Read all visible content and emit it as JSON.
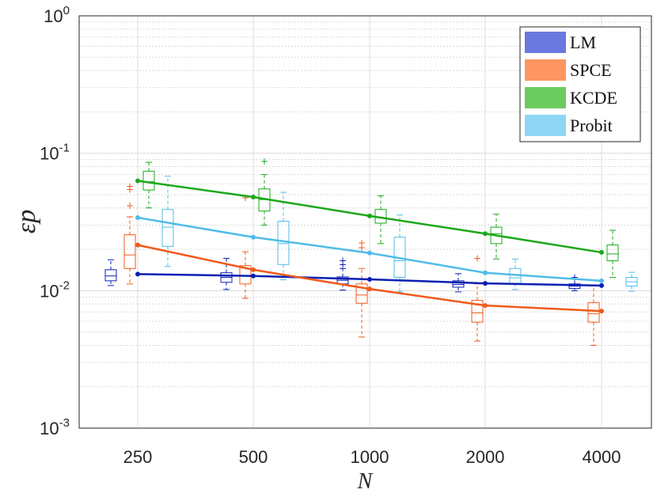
{
  "chart_data": {
    "type": "line",
    "title": "",
    "xlabel": "N",
    "ylabel": "εp",
    "yscale": "log",
    "ylim": [
      0.001,
      1
    ],
    "categories": [
      "250",
      "500",
      "1000",
      "2000",
      "4000"
    ],
    "y_ticks": [
      {
        "value": 0.001,
        "base": "10",
        "exp": "-3"
      },
      {
        "value": 0.01,
        "base": "10",
        "exp": "-2"
      },
      {
        "value": 0.1,
        "base": "10",
        "exp": "-1"
      },
      {
        "value": 1,
        "base": "10",
        "exp": "0"
      }
    ],
    "grid": true,
    "legend_position": "top-right",
    "series": [
      {
        "name": "LM",
        "line_color": "#0a1fb4",
        "patch_color": "#6a78e0",
        "values": [
          0.0132,
          0.0128,
          0.0121,
          0.0113,
          0.0109
        ],
        "boxes": [
          {
            "q1": 0.0118,
            "median": 0.0128,
            "q3": 0.0142,
            "whisker_low": 0.0109,
            "whisker_high": 0.0168,
            "outliers": []
          },
          {
            "q1": 0.0115,
            "median": 0.0125,
            "q3": 0.0135,
            "whisker_low": 0.0102,
            "whisker_high": 0.0172,
            "outliers": []
          },
          {
            "q1": 0.0112,
            "median": 0.0119,
            "q3": 0.0126,
            "whisker_low": 0.0101,
            "whisker_high": 0.0145,
            "outliers": [
              0.0165,
              0.0155
            ]
          },
          {
            "q1": 0.0106,
            "median": 0.0111,
            "q3": 0.0118,
            "whisker_low": 0.0098,
            "whisker_high": 0.0133,
            "outliers": []
          },
          {
            "q1": 0.0104,
            "median": 0.0108,
            "q3": 0.0112,
            "whisker_low": 0.01,
            "whisker_high": 0.0121,
            "outliers": [
              0.0125
            ]
          }
        ]
      },
      {
        "name": "SPCE",
        "line_color": "#f05a1a",
        "patch_color": "#ff9560",
        "values": [
          0.0215,
          0.0142,
          0.0103,
          0.0078,
          0.0071
        ],
        "boxes": [
          {
            "q1": 0.0145,
            "median": 0.0182,
            "q3": 0.0255,
            "whisker_low": 0.0112,
            "whisker_high": 0.0345,
            "outliers": [
              0.0415,
              0.0545,
              0.0575
            ]
          },
          {
            "q1": 0.0112,
            "median": 0.0128,
            "q3": 0.0152,
            "whisker_low": 0.0088,
            "whisker_high": 0.0192,
            "outliers": [
              0.0475
            ]
          },
          {
            "q1": 0.0081,
            "median": 0.0093,
            "q3": 0.0112,
            "whisker_low": 0.0046,
            "whisker_high": 0.0145,
            "outliers": [
              0.0205,
              0.0222
            ]
          },
          {
            "q1": 0.0059,
            "median": 0.0069,
            "q3": 0.0085,
            "whisker_low": 0.0043,
            "whisker_high": 0.0112,
            "outliers": [
              0.0172
            ]
          },
          {
            "q1": 0.0059,
            "median": 0.0068,
            "q3": 0.0082,
            "whisker_low": 0.004,
            "whisker_high": 0.0108,
            "outliers": []
          }
        ]
      },
      {
        "name": "KCDE",
        "line_color": "#1ba81b",
        "patch_color": "#6ccb5f",
        "values": [
          0.063,
          0.048,
          0.035,
          0.026,
          0.019
        ],
        "boxes": [
          {
            "q1": 0.054,
            "median": 0.062,
            "q3": 0.074,
            "whisker_low": 0.04,
            "whisker_high": 0.086,
            "outliers": []
          },
          {
            "q1": 0.038,
            "median": 0.046,
            "q3": 0.055,
            "whisker_low": 0.03,
            "whisker_high": 0.07,
            "outliers": [
              0.087
            ]
          },
          {
            "q1": 0.031,
            "median": 0.034,
            "q3": 0.039,
            "whisker_low": 0.022,
            "whisker_high": 0.049,
            "outliers": []
          },
          {
            "q1": 0.022,
            "median": 0.026,
            "q3": 0.029,
            "whisker_low": 0.017,
            "whisker_high": 0.036,
            "outliers": []
          },
          {
            "q1": 0.0165,
            "median": 0.0185,
            "q3": 0.0215,
            "whisker_low": 0.0125,
            "whisker_high": 0.0275,
            "outliers": []
          }
        ]
      },
      {
        "name": "Probit",
        "line_color": "#4fbce8",
        "patch_color": "#8fd6f4",
        "values": [
          0.034,
          0.0245,
          0.0188,
          0.0135,
          0.0118
        ],
        "boxes": [
          {
            "q1": 0.021,
            "median": 0.029,
            "q3": 0.039,
            "whisker_low": 0.015,
            "whisker_high": 0.068,
            "outliers": []
          },
          {
            "q1": 0.0155,
            "median": 0.022,
            "q3": 0.032,
            "whisker_low": 0.012,
            "whisker_high": 0.052,
            "outliers": []
          },
          {
            "q1": 0.0125,
            "median": 0.0165,
            "q3": 0.0245,
            "whisker_low": 0.0098,
            "whisker_high": 0.0355,
            "outliers": []
          },
          {
            "q1": 0.0113,
            "median": 0.0124,
            "q3": 0.0145,
            "whisker_low": 0.0102,
            "whisker_high": 0.017,
            "outliers": []
          },
          {
            "q1": 0.0108,
            "median": 0.0116,
            "q3": 0.0125,
            "whisker_low": 0.0099,
            "whisker_high": 0.0136,
            "outliers": []
          }
        ]
      }
    ]
  }
}
